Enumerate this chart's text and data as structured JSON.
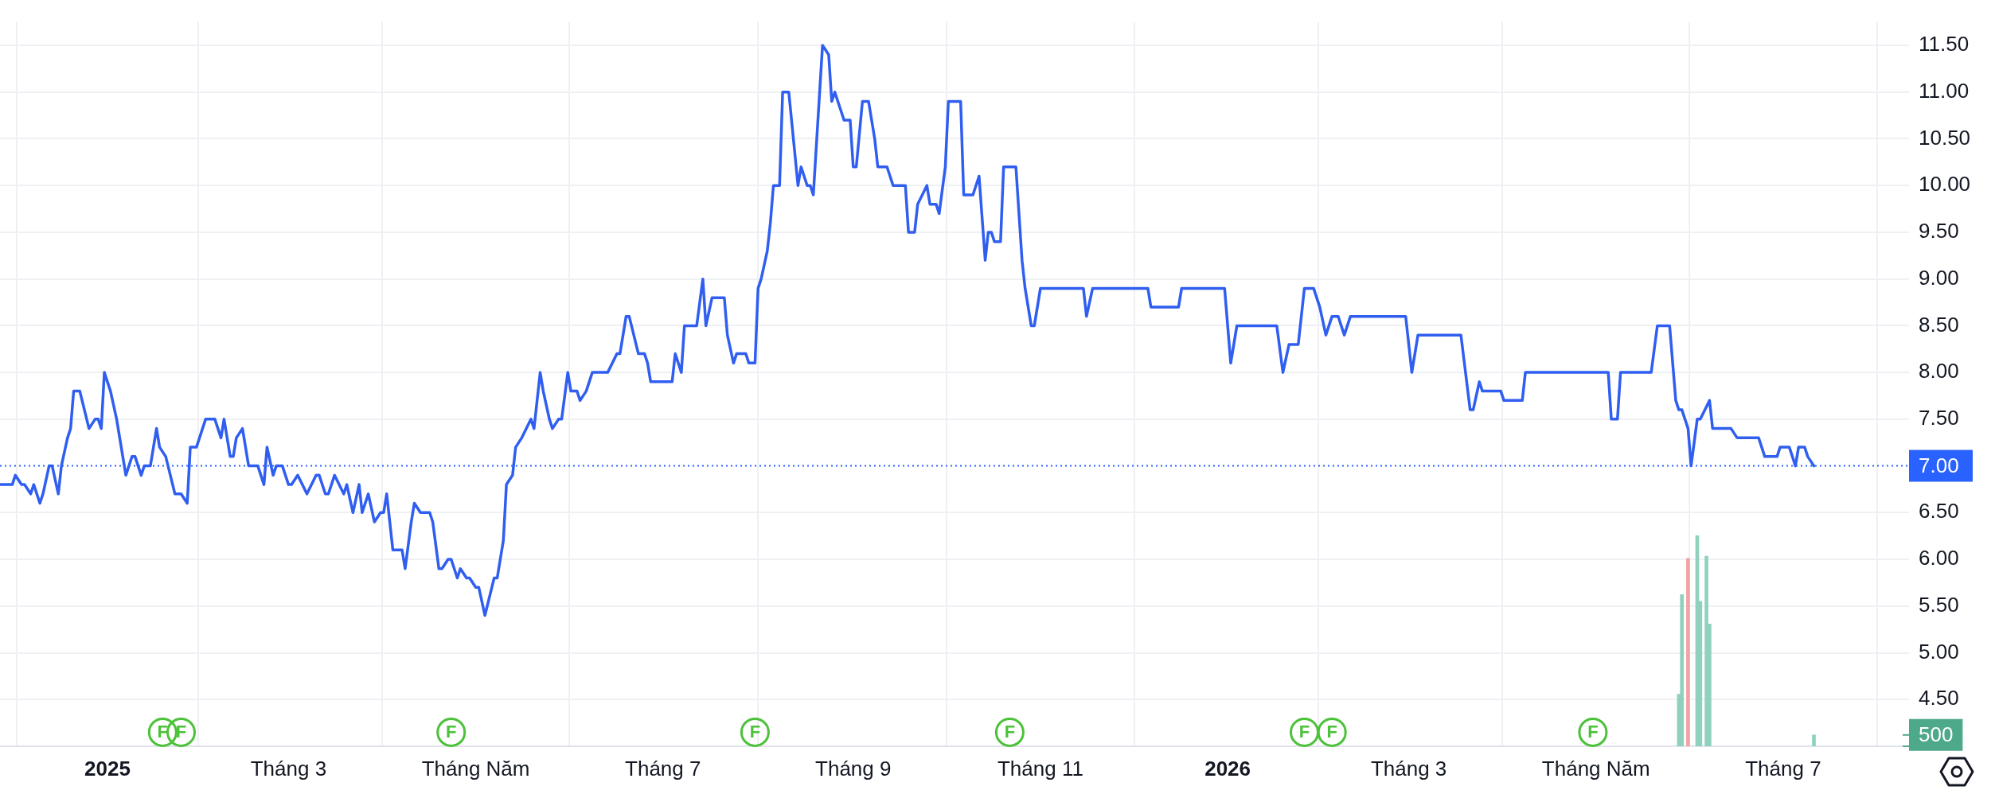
{
  "chart_data": {
    "type": "line",
    "xlim": [
      "2024-11-27",
      "2026-08-11"
    ],
    "xticks": [
      {
        "value": "2025-01-01",
        "label": "2025"
      },
      {
        "value": "2025-03-01",
        "label": "Tháng 3"
      },
      {
        "value": "2025-05-01",
        "label": "Tháng Năm"
      },
      {
        "value": "2025-07-01",
        "label": "Tháng 7"
      },
      {
        "value": "2025-09-01",
        "label": "Tháng 9"
      },
      {
        "value": "2025-11-01",
        "label": "Tháng 11"
      },
      {
        "value": "2026-01-01",
        "label": "2026"
      },
      {
        "value": "2026-03-01",
        "label": "Tháng 3"
      },
      {
        "value": "2026-05-01",
        "label": "Tháng Năm"
      },
      {
        "value": "2026-07-01",
        "label": "Tháng 7"
      }
    ],
    "ylim": [
      4.0,
      11.75
    ],
    "yticks": [
      {
        "value": 4.5,
        "label": "4.50"
      },
      {
        "value": 5,
        "label": "5.00"
      },
      {
        "value": 5.5,
        "label": "5.50"
      },
      {
        "value": 6,
        "label": "6.00"
      },
      {
        "value": 6.5,
        "label": "6.50"
      },
      {
        "value": 7.5,
        "label": "7.50"
      },
      {
        "value": 8,
        "label": "8.00"
      },
      {
        "value": 8.5,
        "label": "8.50"
      },
      {
        "value": 9,
        "label": "9.00"
      },
      {
        "value": 9.5,
        "label": "9.50"
      },
      {
        "value": 10,
        "label": "10.00"
      },
      {
        "value": 10.5,
        "label": "10.50"
      },
      {
        "value": 11,
        "label": "11.00"
      },
      {
        "value": 11.5,
        "label": "11.50"
      }
    ],
    "y2lim": [
      0,
      32000
    ],
    "y2ticks": [
      {
        "value": 0,
        "label": null
      },
      {
        "value": 500,
        "label": "500"
      }
    ],
    "grid": true,
    "legend": false,
    "marker": "none",
    "line_style": "solid",
    "ref_lines": [
      {
        "axis": "y",
        "value": 7,
        "label": "7.00",
        "color": "#2962ff",
        "line_style": "dotted"
      }
    ],
    "annotations": [
      {
        "text": "F",
        "x": "2025-01-19",
        "y": 4.15
      },
      {
        "text": "F",
        "x": "2025-01-25",
        "y": 4.15
      },
      {
        "text": "F",
        "x": "2025-04-23",
        "y": 4.15
      },
      {
        "text": "F",
        "x": "2025-07-31",
        "y": 4.15
      },
      {
        "text": "F",
        "x": "2025-10-22",
        "y": 4.15
      },
      {
        "text": "F",
        "x": "2026-01-26",
        "y": 4.15
      },
      {
        "text": "F",
        "x": "2026-02-04",
        "y": 4.15
      },
      {
        "text": "F",
        "x": "2026-04-30",
        "y": 4.15
      }
    ],
    "series": [
      {
        "color": "#2f5ef0",
        "x": [
          "2024-11-27",
          "2024-12-01",
          "2024-12-02",
          "2024-12-04",
          "2024-12-05",
          "2024-12-07",
          "2024-12-08",
          "2024-12-10",
          "2024-12-11",
          "2024-12-13",
          "2024-12-14",
          "2024-12-16",
          "2024-12-17",
          "2024-12-19",
          "2024-12-20",
          "2024-12-21",
          "2024-12-23",
          "2024-12-26",
          "2024-12-28",
          "2024-12-29",
          "2024-12-30",
          "2024-12-31",
          "2025-01-02",
          "2025-01-04",
          "2025-01-06",
          "2025-01-07",
          "2025-01-09",
          "2025-01-10",
          "2025-01-12",
          "2025-01-13",
          "2025-01-15",
          "2025-01-17",
          "2025-01-18",
          "2025-01-20",
          "2025-01-23",
          "2025-01-25",
          "2025-01-27",
          "2025-01-28",
          "2025-01-30",
          "2025-01-31",
          "2025-02-02",
          "2025-02-05",
          "2025-02-07",
          "2025-02-08",
          "2025-02-10",
          "2025-02-11",
          "2025-02-12",
          "2025-02-14",
          "2025-02-16",
          "2025-02-19",
          "2025-02-21",
          "2025-02-22",
          "2025-02-24",
          "2025-02-25",
          "2025-02-27",
          "2025-03-01",
          "2025-03-02",
          "2025-03-04",
          "2025-03-07",
          "2025-03-10",
          "2025-03-11",
          "2025-03-13",
          "2025-03-14",
          "2025-03-16",
          "2025-03-19",
          "2025-03-20",
          "2025-03-22",
          "2025-03-24",
          "2025-03-25",
          "2025-03-27",
          "2025-03-29",
          "2025-03-31",
          "2025-04-01",
          "2025-04-02",
          "2025-04-04",
          "2025-04-07",
          "2025-04-08",
          "2025-04-10",
          "2025-04-11",
          "2025-04-13",
          "2025-04-16",
          "2025-04-17",
          "2025-04-19",
          "2025-04-20",
          "2025-04-22",
          "2025-04-23",
          "2025-04-25",
          "2025-04-26",
          "2025-04-28",
          "2025-04-29",
          "2025-05-01",
          "2025-05-02",
          "2025-05-04",
          "2025-05-07",
          "2025-05-08",
          "2025-05-10",
          "2025-05-11",
          "2025-05-13",
          "2025-05-14",
          "2025-05-16",
          "2025-05-19",
          "2025-05-20",
          "2025-05-22",
          "2025-05-23",
          "2025-05-25",
          "2025-05-26",
          "2025-05-28",
          "2025-05-29",
          "2025-05-31",
          "2025-06-01",
          "2025-06-03",
          "2025-06-04",
          "2025-06-06",
          "2025-06-08",
          "2025-06-13",
          "2025-06-16",
          "2025-06-17",
          "2025-06-19",
          "2025-06-20",
          "2025-06-23",
          "2025-06-25",
          "2025-06-26",
          "2025-06-27",
          "2025-07-04",
          "2025-07-05",
          "2025-07-07",
          "2025-07-08",
          "2025-07-12",
          "2025-07-14",
          "2025-07-15",
          "2025-07-17",
          "2025-07-21",
          "2025-07-22",
          "2025-07-24",
          "2025-07-25",
          "2025-07-28",
          "2025-07-29",
          "2025-07-31",
          "2025-08-01",
          "2025-08-02",
          "2025-08-04",
          "2025-08-05",
          "2025-08-06",
          "2025-08-08",
          "2025-08-09",
          "2025-08-11",
          "2025-08-14",
          "2025-08-15",
          "2025-08-17",
          "2025-08-18",
          "2025-08-19",
          "2025-08-22",
          "2025-08-24",
          "2025-08-25",
          "2025-08-26",
          "2025-08-28",
          "2025-08-29",
          "2025-08-31",
          "2025-09-01",
          "2025-09-02",
          "2025-09-04",
          "2025-09-06",
          "2025-09-08",
          "2025-09-09",
          "2025-09-12",
          "2025-09-14",
          "2025-09-18",
          "2025-09-19",
          "2025-09-21",
          "2025-09-22",
          "2025-09-25",
          "2025-09-26",
          "2025-09-28",
          "2025-09-29",
          "2025-10-01",
          "2025-10-02",
          "2025-10-06",
          "2025-10-07",
          "2025-10-10",
          "2025-10-12",
          "2025-10-14",
          "2025-10-15",
          "2025-10-16",
          "2025-10-17",
          "2025-10-19",
          "2025-10-20",
          "2025-10-24",
          "2025-10-26",
          "2025-10-27",
          "2025-10-29",
          "2025-10-30",
          "2025-11-01",
          "2025-11-15",
          "2025-11-16",
          "2025-11-18",
          "2025-12-06",
          "2025-12-07",
          "2025-12-16",
          "2025-12-17",
          "2025-12-31",
          "2026-01-02",
          "2026-01-04",
          "2026-01-17",
          "2026-01-19",
          "2026-01-21",
          "2026-01-24",
          "2026-01-26",
          "2026-01-29",
          "2026-01-31",
          "2026-02-02",
          "2026-02-04",
          "2026-02-06",
          "2026-02-08",
          "2026-02-10",
          "2026-02-28",
          "2026-03-02",
          "2026-03-04",
          "2026-03-18",
          "2026-03-21",
          "2026-03-22",
          "2026-03-24",
          "2026-03-25",
          "2026-03-31",
          "2026-04-01",
          "2026-04-07",
          "2026-04-08",
          "2026-05-05",
          "2026-05-06",
          "2026-05-08",
          "2026-05-09",
          "2026-05-19",
          "2026-05-21",
          "2026-05-25",
          "2026-05-27",
          "2026-05-28",
          "2026-05-29",
          "2026-05-31",
          "2026-06-01",
          "2026-06-03",
          "2026-06-04",
          "2026-06-07",
          "2026-06-08",
          "2026-06-14",
          "2026-06-16",
          "2026-06-23",
          "2026-06-25",
          "2026-06-29",
          "2026-06-30",
          "2026-07-03",
          "2026-07-05",
          "2026-07-06",
          "2026-07-08",
          "2026-07-09",
          "2026-07-11"
        ],
        "values": [
          6.8,
          6.8,
          6.9,
          6.8,
          6.8,
          6.7,
          6.8,
          6.6,
          6.7,
          7.0,
          7.0,
          6.7,
          7.0,
          7.3,
          7.4,
          7.8,
          7.8,
          7.4,
          7.5,
          7.5,
          7.4,
          8.0,
          7.8,
          7.5,
          7.1,
          6.9,
          7.1,
          7.1,
          6.9,
          7.0,
          7.0,
          7.4,
          7.2,
          7.1,
          6.7,
          6.7,
          6.6,
          7.2,
          7.2,
          7.3,
          7.5,
          7.5,
          7.3,
          7.5,
          7.1,
          7.1,
          7.3,
          7.4,
          7.0,
          7.0,
          6.8,
          7.2,
          6.9,
          7.0,
          7.0,
          6.8,
          6.8,
          6.9,
          6.7,
          6.9,
          6.9,
          6.7,
          6.7,
          6.9,
          6.7,
          6.8,
          6.5,
          6.8,
          6.5,
          6.7,
          6.4,
          6.5,
          6.5,
          6.7,
          6.1,
          6.1,
          5.9,
          6.4,
          6.6,
          6.5,
          6.5,
          6.4,
          5.9,
          5.9,
          6.0,
          6.0,
          5.8,
          5.9,
          5.8,
          5.8,
          5.7,
          5.7,
          5.4,
          5.8,
          5.8,
          6.2,
          6.8,
          6.9,
          7.2,
          7.3,
          7.5,
          7.4,
          8.0,
          7.8,
          7.5,
          7.4,
          7.5,
          7.5,
          8.0,
          7.8,
          7.8,
          7.7,
          7.8,
          8.0,
          8.0,
          8.2,
          8.2,
          8.6,
          8.6,
          8.2,
          8.2,
          8.1,
          7.9,
          7.9,
          8.2,
          8.0,
          8.5,
          8.5,
          9.0,
          8.5,
          8.8,
          8.8,
          8.4,
          8.1,
          8.2,
          8.2,
          8.1,
          8.1,
          8.9,
          9.0,
          9.3,
          9.6,
          10.0,
          10.0,
          11.0,
          11.0,
          10.0,
          10.2,
          10.0,
          10.0,
          9.9,
          11.5,
          11.4,
          10.9,
          11.0,
          10.8,
          10.7,
          10.7,
          10.2,
          10.2,
          10.9,
          10.9,
          10.5,
          10.2,
          10.2,
          10.0,
          10.0,
          9.5,
          9.5,
          9.8,
          10.0,
          9.8,
          9.8,
          9.7,
          10.2,
          10.9,
          10.9,
          9.9,
          9.9,
          10.1,
          9.2,
          9.5,
          9.5,
          9.4,
          9.4,
          10.2,
          10.2,
          9.2,
          8.9,
          8.5,
          8.5,
          8.9,
          8.9,
          8.6,
          8.9,
          8.9,
          8.7,
          8.7,
          8.9,
          8.9,
          8.1,
          8.5,
          8.5,
          8.0,
          8.3,
          8.3,
          8.9,
          8.9,
          8.7,
          8.4,
          8.6,
          8.6,
          8.4,
          8.6,
          8.6,
          8.0,
          8.4,
          8.4,
          7.6,
          7.6,
          7.9,
          7.8,
          7.8,
          7.7,
          7.7,
          8.0,
          8.0,
          7.5,
          7.5,
          8.0,
          8.0,
          8.5,
          8.5,
          7.7,
          7.6,
          7.6,
          7.4,
          7.0,
          7.5,
          7.5,
          7.7,
          7.4,
          7.4,
          7.3,
          7.3,
          7.1,
          7.1,
          7.2,
          7.2,
          7.0,
          7.2,
          7.2,
          7.1,
          7.0
        ]
      },
      {
        "type": "bar",
        "axis": "y2",
        "x": [
          "2026-05-28",
          "2026-05-29",
          "2026-05-31",
          "2026-06-03",
          "2026-06-04",
          "2026-06-06",
          "2026-06-07",
          "2026-07-11"
        ],
        "values": [
          2300,
          6700,
          8300,
          9300,
          6400,
          8400,
          5400,
          500
        ],
        "colors": [
          "#8fd1bd",
          "#8fd1bd",
          "#f2a1a5",
          "#8fd1bd",
          "#8fd1bd",
          "#8fd1bd",
          "#8fd1bd",
          "#8fd1bd"
        ]
      }
    ]
  }
}
